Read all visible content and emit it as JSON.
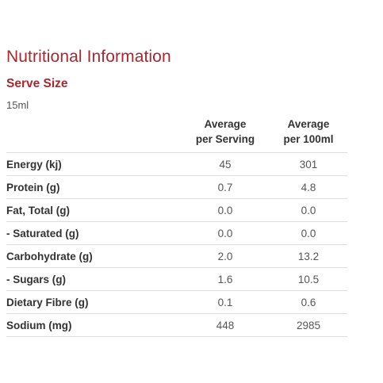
{
  "title": "Nutritional Information",
  "serve_size": {
    "heading": "Serve Size",
    "value": "15ml"
  },
  "table": {
    "headers": {
      "per_serving": [
        "Average",
        "per Serving"
      ],
      "per_100ml": [
        "Average",
        "per 100ml"
      ]
    },
    "rows": [
      {
        "nutrient": "Energy (kj)",
        "per_serving": "45",
        "per_100ml": "301"
      },
      {
        "nutrient": "Protein (g)",
        "per_serving": "0.7",
        "per_100ml": "4.8"
      },
      {
        "nutrient": "Fat, Total (g)",
        "per_serving": "0.0",
        "per_100ml": "0.0"
      },
      {
        "nutrient": "- Saturated (g)",
        "per_serving": "0.0",
        "per_100ml": "0.0"
      },
      {
        "nutrient": "Carbohydrate (g)",
        "per_serving": "2.0",
        "per_100ml": "13.2"
      },
      {
        "nutrient": "- Sugars (g)",
        "per_serving": "1.6",
        "per_100ml": "10.5"
      },
      {
        "nutrient": "Dietary Fibre (g)",
        "per_serving": "0.1",
        "per_100ml": "0.6"
      },
      {
        "nutrient": "Sodium (mg)",
        "per_serving": "448",
        "per_100ml": "2985"
      }
    ]
  },
  "colors": {
    "accent": "#a8282e",
    "text": "#333333",
    "muted": "#555555",
    "rule": "#dddddd"
  }
}
